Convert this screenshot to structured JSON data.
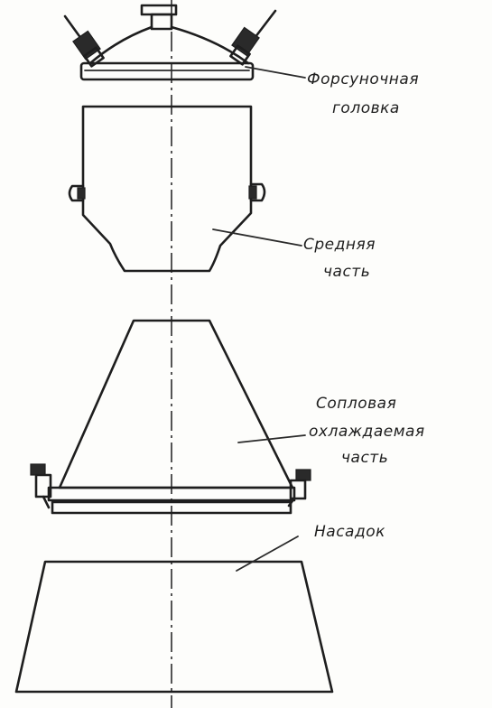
{
  "labels": {
    "injector_head_line1": "Форсуночная",
    "injector_head_line2": "головка",
    "middle_part_line1": "Средняя",
    "middle_part_line2": "часть",
    "nozzle_part_line1": "Сопловая",
    "nozzle_part_line2": "охлаждаемая",
    "nozzle_part_line3": "часть",
    "extension_line1": "Насадок"
  },
  "colors": {
    "ink": "#1e1e1e",
    "paper": "#fdfdfb"
  }
}
